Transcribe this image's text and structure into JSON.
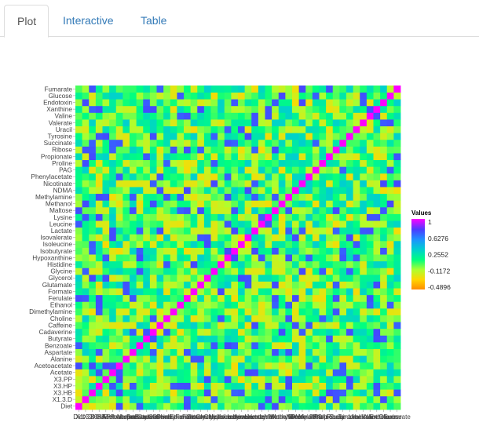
{
  "tabs": [
    {
      "label": "Plot",
      "active": true
    },
    {
      "label": "Interactive",
      "active": false
    },
    {
      "label": "Table",
      "active": false
    }
  ],
  "colors": {
    "tab_active_text": "#555555",
    "tab_text": "#337ab7"
  },
  "chart_data": {
    "type": "heatmap",
    "title": "",
    "variables": [
      "Diet",
      "X1.3.D",
      "X3.HB",
      "X3.HP",
      "X3.PP",
      "Acetate",
      "Acetoacetate",
      "Alanine",
      "Aspartate",
      "Benzoate",
      "Butyrate",
      "Cadaverine",
      "Caffeine",
      "Choline",
      "Dimethylamine",
      "Ethanol",
      "Ferulate",
      "Formate",
      "Glutamate",
      "Glycerol",
      "Glycine",
      "Histidine",
      "Hypoxanthine",
      "Isobutyrate",
      "Isoleucine",
      "Isovalerate",
      "Lactate",
      "Leucine",
      "Lysine",
      "Maltose",
      "Methanol",
      "Methylamine",
      "NDMA",
      "Nicotinate",
      "Phenylacetate",
      "PAG",
      "Proline",
      "Propionate",
      "Ribose",
      "Succinate",
      "Tyrosine",
      "Uracil",
      "Valerate",
      "Valine",
      "Xanthine",
      "Endotoxin",
      "Glucose",
      "Fumarate"
    ],
    "legend": {
      "title": "Values",
      "ticks": [
        "1",
        "0.6276",
        "0.2552",
        "-0.1172",
        "-0.4896"
      ],
      "min": -0.55,
      "max": 1,
      "position": "right"
    },
    "colorscale": [
      "#ff8c00",
      "#ffd700",
      "#adff2f",
      "#00ff7f",
      "#00ced1",
      "#1e90ff",
      "#4b3cff",
      "#ff00ff"
    ]
  }
}
